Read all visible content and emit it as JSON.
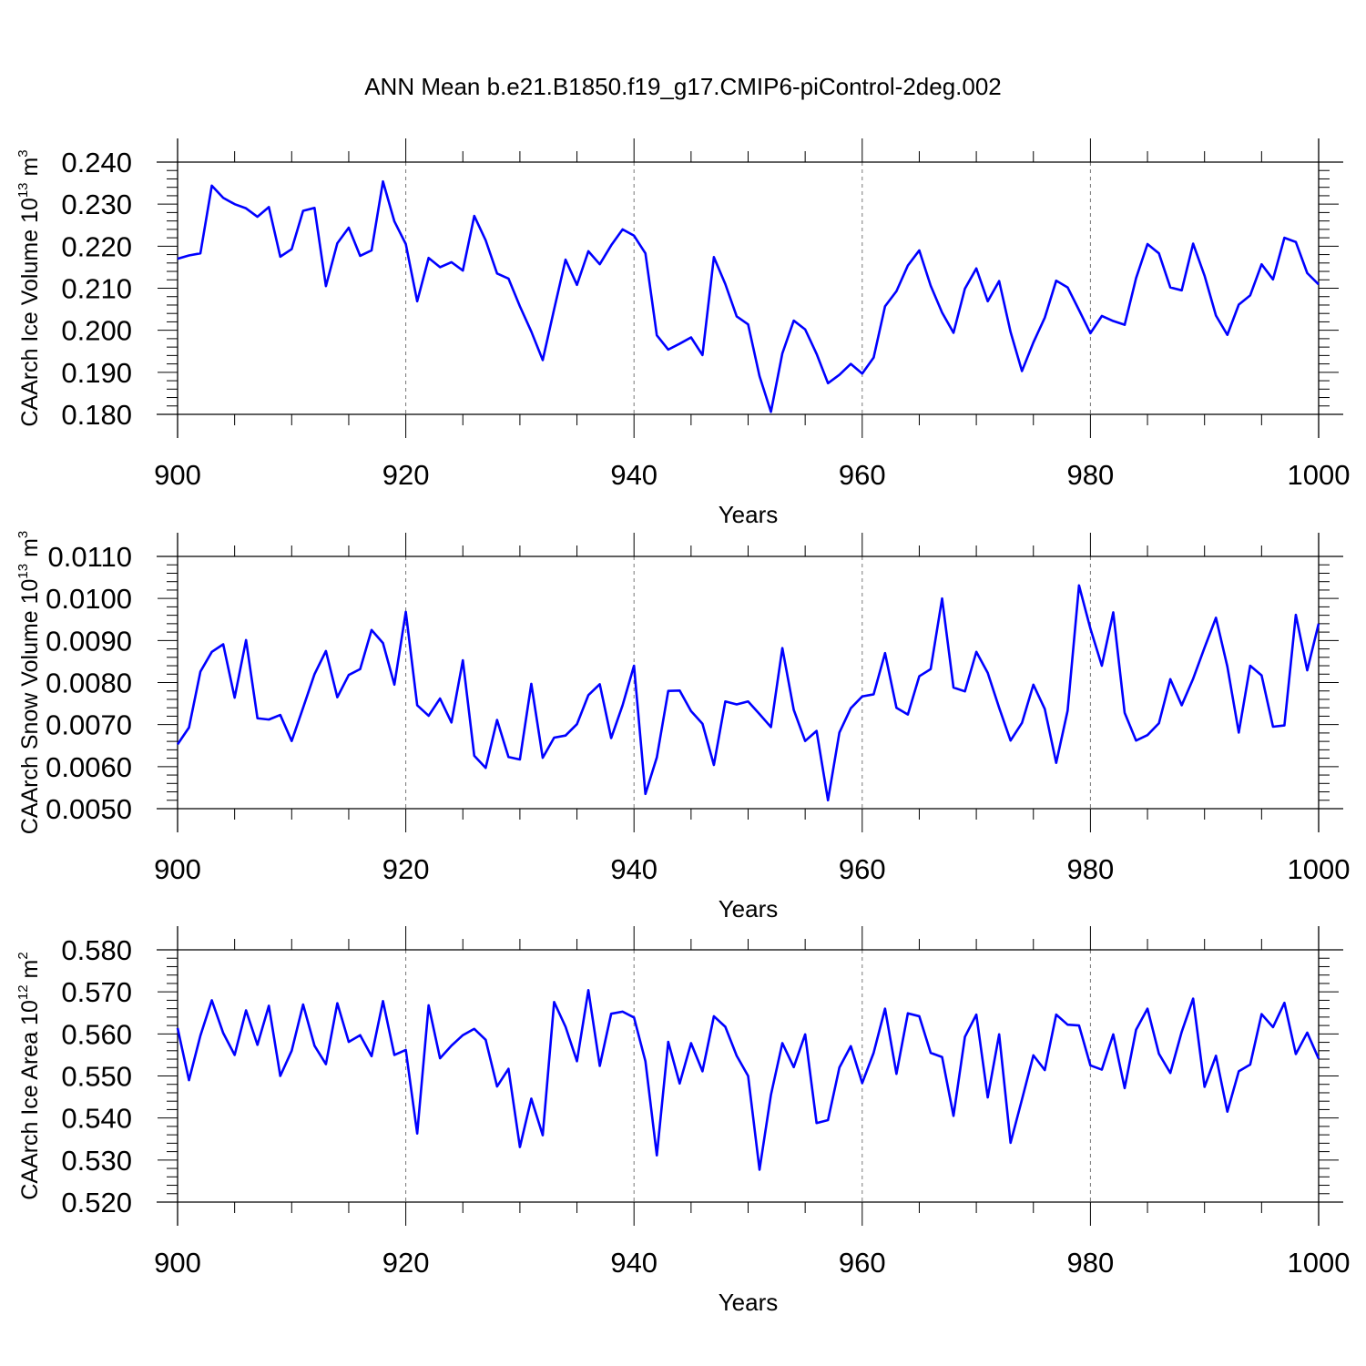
{
  "page_title": "ANN Mean b.e21.B1850.f19_g17.CMIP6-piControl-2deg.002",
  "chart_data": [
    {
      "type": "line",
      "title": "ANN Mean b.e21.B1850.f19_g17.CMIP6-piControl-2deg.002",
      "xlabel": "Years",
      "ylabel": "CAArch Ice Volume 10",
      "ylabel_exp": "13",
      "ylabel_unit": "m",
      "ylabel_unit_exp": "3",
      "xlim": [
        900,
        1000
      ],
      "ylim": [
        0.18,
        0.24
      ],
      "xticks": [
        900,
        920,
        940,
        960,
        980,
        1000
      ],
      "ytick_labels": [
        "0.240",
        "0.230",
        "0.220",
        "0.210",
        "0.200",
        "0.190",
        "0.180"
      ],
      "ytick_values": [
        0.24,
        0.23,
        0.22,
        0.21,
        0.2,
        0.19,
        0.18
      ],
      "grid_x": [
        920,
        940,
        960,
        980
      ],
      "series": [
        {
          "name": "CAArch Ice Volume",
          "color": "#0000ff",
          "x_start": 900,
          "values": [
            0.217,
            0.2178,
            0.2183,
            0.2344,
            0.2315,
            0.23,
            0.229,
            0.227,
            0.2293,
            0.2175,
            0.2193,
            0.2284,
            0.2291,
            0.2105,
            0.2207,
            0.2244,
            0.2177,
            0.219,
            0.2354,
            0.2259,
            0.2205,
            0.2069,
            0.2172,
            0.215,
            0.2162,
            0.2142,
            0.2272,
            0.2214,
            0.2135,
            0.2123,
            0.2057,
            0.1997,
            0.1929,
            0.205,
            0.2168,
            0.2108,
            0.2188,
            0.2157,
            0.2202,
            0.224,
            0.2225,
            0.2183,
            0.1988,
            0.1954,
            0.1968,
            0.1983,
            0.1941,
            0.2174,
            0.211,
            0.2033,
            0.2014,
            0.1891,
            0.1806,
            0.1945,
            0.2023,
            0.2002,
            0.1944,
            0.1874,
            0.1894,
            0.192,
            0.1897,
            0.1935,
            0.2057,
            0.2093,
            0.2154,
            0.219,
            0.2106,
            0.2042,
            0.1994,
            0.2099,
            0.2147,
            0.2069,
            0.2117,
            0.1996,
            0.1903,
            0.1971,
            0.203,
            0.2118,
            0.2102,
            0.2048,
            0.1993,
            0.2034,
            0.2022,
            0.2013,
            0.2124,
            0.2205,
            0.2183,
            0.2102,
            0.2095,
            0.2206,
            0.213,
            0.2035,
            0.1989,
            0.2061,
            0.2083,
            0.2157,
            0.2121,
            0.222,
            0.221,
            0.2136,
            0.2109
          ]
        }
      ]
    },
    {
      "type": "line",
      "xlabel": "Years",
      "ylabel": "CAArch Snow Volume 10",
      "ylabel_exp": "13",
      "ylabel_unit": "m",
      "ylabel_unit_exp": "3",
      "xlim": [
        900,
        1000
      ],
      "ylim": [
        0.005,
        0.011
      ],
      "xticks": [
        900,
        920,
        940,
        960,
        980,
        1000
      ],
      "ytick_labels": [
        "0.0110",
        "0.0100",
        "0.0090",
        "0.0080",
        "0.0070",
        "0.0060",
        "0.0050"
      ],
      "ytick_values": [
        0.011,
        0.01,
        0.009,
        0.008,
        0.007,
        0.006,
        0.005
      ],
      "grid_x": [
        920,
        940,
        960,
        980
      ],
      "series": [
        {
          "name": "CAArch Snow Volume",
          "color": "#0000ff",
          "x_start": 900,
          "values": [
            0.00653,
            0.00693,
            0.00826,
            0.00873,
            0.00891,
            0.00764,
            0.00901,
            0.00715,
            0.00712,
            0.00723,
            0.00661,
            0.0074,
            0.0082,
            0.00875,
            0.00765,
            0.00818,
            0.00832,
            0.00925,
            0.00894,
            0.00795,
            0.00968,
            0.00746,
            0.00721,
            0.00762,
            0.00705,
            0.00853,
            0.00626,
            0.00597,
            0.00711,
            0.00623,
            0.00617,
            0.00797,
            0.00621,
            0.00669,
            0.00674,
            0.00701,
            0.0077,
            0.00796,
            0.00668,
            0.00746,
            0.0084,
            0.00535,
            0.00622,
            0.0078,
            0.00781,
            0.00732,
            0.00702,
            0.00604,
            0.00755,
            0.00748,
            0.00755,
            0.00725,
            0.00694,
            0.00882,
            0.00735,
            0.00661,
            0.00685,
            0.0052,
            0.00681,
            0.00739,
            0.00767,
            0.00772,
            0.0087,
            0.0074,
            0.00724,
            0.00815,
            0.00832,
            0.01,
            0.00788,
            0.00779,
            0.00873,
            0.00823,
            0.0074,
            0.00662,
            0.00704,
            0.00795,
            0.00737,
            0.00609,
            0.00733,
            0.01031,
            0.00928,
            0.0084,
            0.00967,
            0.00728,
            0.00662,
            0.00675,
            0.00703,
            0.00808,
            0.00746,
            0.00809,
            0.00883,
            0.00954,
            0.00838,
            0.00681,
            0.0084,
            0.00817,
            0.00695,
            0.00698,
            0.00961,
            0.00829,
            0.0094
          ]
        }
      ]
    },
    {
      "type": "line",
      "xlabel": "Years",
      "ylabel": "CAArch Ice Area 10",
      "ylabel_exp": "12",
      "ylabel_unit": "m",
      "ylabel_unit_exp": "2",
      "xlim": [
        900,
        1000
      ],
      "ylim": [
        0.52,
        0.58
      ],
      "xticks": [
        900,
        920,
        940,
        960,
        980,
        1000
      ],
      "ytick_labels": [
        "0.580",
        "0.570",
        "0.560",
        "0.550",
        "0.540",
        "0.530",
        "0.520"
      ],
      "ytick_values": [
        0.58,
        0.57,
        0.56,
        0.55,
        0.54,
        0.53,
        0.52
      ],
      "grid_x": [
        920,
        940,
        960,
        980
      ],
      "series": [
        {
          "name": "CAArch Ice Area",
          "color": "#0000ff",
          "x_start": 900,
          "values": [
            0.5614,
            0.549,
            0.5596,
            0.568,
            0.5602,
            0.555,
            0.5656,
            0.5574,
            0.5667,
            0.55,
            0.556,
            0.567,
            0.5572,
            0.5528,
            0.5673,
            0.5581,
            0.5597,
            0.5547,
            0.5678,
            0.555,
            0.5562,
            0.5363,
            0.5668,
            0.5542,
            0.5572,
            0.5597,
            0.5612,
            0.5586,
            0.5475,
            0.5517,
            0.5331,
            0.5446,
            0.5359,
            0.5676,
            0.5617,
            0.5535,
            0.5704,
            0.5524,
            0.5648,
            0.5653,
            0.5639,
            0.5535,
            0.5311,
            0.5581,
            0.5482,
            0.5578,
            0.5511,
            0.5642,
            0.5617,
            0.5548,
            0.55,
            0.5277,
            0.5455,
            0.5578,
            0.5521,
            0.5599,
            0.5388,
            0.5395,
            0.552,
            0.5571,
            0.5483,
            0.5555,
            0.566,
            0.5505,
            0.5649,
            0.5642,
            0.5555,
            0.5545,
            0.5405,
            0.5593,
            0.5646,
            0.5449,
            0.5599,
            0.5341,
            0.5444,
            0.5549,
            0.5514,
            0.5646,
            0.5622,
            0.562,
            0.5525,
            0.5515,
            0.5599,
            0.5471,
            0.561,
            0.566,
            0.5553,
            0.5507,
            0.5605,
            0.5684,
            0.5474,
            0.5548,
            0.5415,
            0.5511,
            0.5527,
            0.5647,
            0.5616,
            0.5674,
            0.5552,
            0.5603,
            0.5541
          ]
        }
      ]
    }
  ]
}
